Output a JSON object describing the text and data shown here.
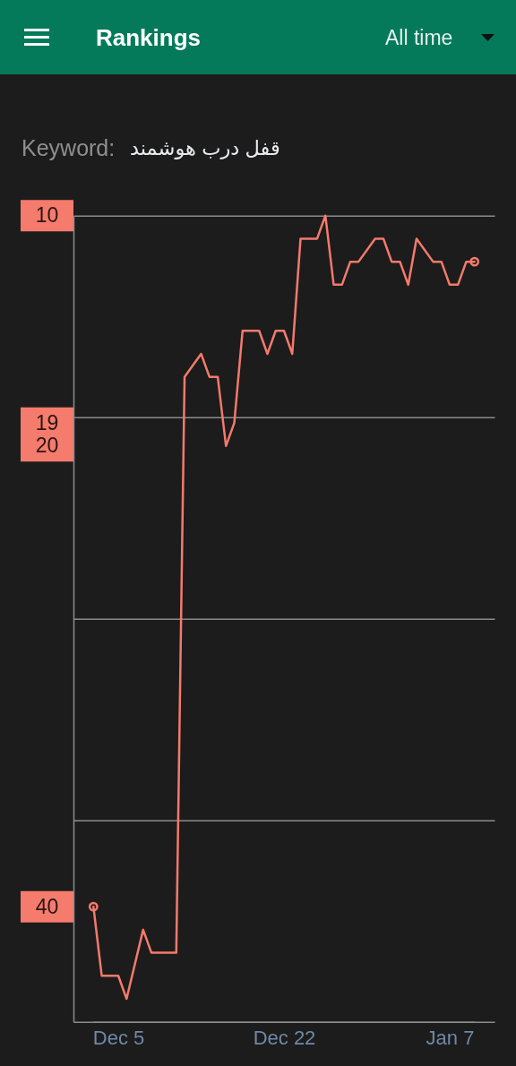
{
  "chart_data": {
    "type": "line",
    "title": "Rankings",
    "subtitle": "قفل درب هوشمند",
    "annotations": [
      "All time",
      "Keyword:"
    ],
    "categories": [
      null,
      null,
      null,
      "Dec 5",
      null,
      null,
      null,
      null,
      null,
      null,
      null,
      null,
      null,
      null,
      null,
      null,
      null,
      null,
      null,
      null,
      null,
      null,
      null,
      "Dec 22",
      null,
      null,
      null,
      null,
      null,
      null,
      null,
      null,
      null,
      null,
      null,
      null,
      null,
      null,
      null,
      null,
      null,
      null,
      null,
      "Jan 7",
      null,
      null,
      null
    ],
    "series": [
      {
        "type": "line",
        "color": "#f47a6c",
        "values": [
          40,
          43,
          43,
          43,
          44,
          null,
          41,
          42,
          42,
          42,
          42,
          17,
          null,
          16,
          17,
          17,
          20,
          19,
          15,
          15,
          15,
          16,
          15,
          15,
          16,
          11,
          11,
          11,
          10,
          13,
          13,
          12,
          12,
          null,
          11,
          11,
          12,
          12,
          13,
          11,
          null,
          12,
          12,
          13,
          13,
          12,
          12
        ]
      },
      {
        "type": "scatter",
        "color": "#f47a6c",
        "marker": "circle",
        "values": [
          40,
          null,
          null,
          null,
          null,
          null,
          null,
          null,
          null,
          null,
          null,
          null,
          null,
          null,
          null,
          null,
          null,
          null,
          null,
          null,
          null,
          null,
          null,
          null,
          null,
          null,
          null,
          null,
          null,
          null,
          null,
          null,
          null,
          null,
          null,
          null,
          null,
          null,
          null,
          null,
          null,
          null,
          null,
          null,
          null,
          null,
          12
        ]
      }
    ],
    "ylim": [
      45,
      10
    ],
    "yticks": [
      10,
      19,
      20,
      40,
      {
        "value": 18.75,
        "label": null
      },
      {
        "value": 27.5,
        "label": null
      },
      {
        "value": 36.25,
        "label": null
      },
      {
        "value": 45,
        "label": null
      }
    ],
    "grid": "y"
  }
}
